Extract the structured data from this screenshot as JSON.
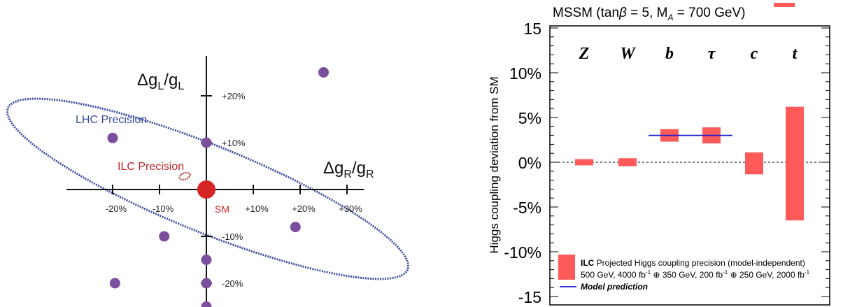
{
  "chart_data": [
    {
      "type": "scatter",
      "xlabel_base": "Δg",
      "xlabel_sub": "R",
      "xlabel_div": "/g",
      "ylabel_base": "Δg",
      "ylabel_sub": "L",
      "ylabel_div": "/g",
      "x_ticks": [
        -20,
        -10,
        10,
        20,
        30
      ],
      "x_tick_labels": [
        "-20%",
        "-10%",
        "+10%",
        "+20%",
        "+30%"
      ],
      "y_ticks": [
        -20,
        -10,
        10,
        20
      ],
      "y_tick_labels": [
        "-20%",
        "-10%",
        "+10%",
        "+20%"
      ],
      "origin_label": "SM",
      "annotations": {
        "lhc": "LHC Precision",
        "ilc": "ILC Precision"
      },
      "points": [
        {
          "x": 25,
          "y": 25
        },
        {
          "x": -20,
          "y": 11
        },
        {
          "x": 0,
          "y": 10
        },
        {
          "x": 19,
          "y": -8
        },
        {
          "x": -9,
          "y": -10
        },
        {
          "x": 0,
          "y": -15
        },
        {
          "x": -19.5,
          "y": -20
        },
        {
          "x": 0,
          "y": -20
        },
        {
          "x": 0,
          "y": -25
        }
      ],
      "colors": {
        "points": "#7b4f9e",
        "sm": "#d42424",
        "lhc": "#3b4a9c",
        "ilc": "#c0282a",
        "axis": "#111111"
      }
    },
    {
      "type": "bar",
      "title_prefix": "MSSM (tan",
      "title_beta": "β",
      "title_mid": " = 5, M",
      "title_sub": "A",
      "title_suffix": " = 700 GeV)",
      "ylabel": "Higgs coupling deviation from SM",
      "ylim": [
        -15,
        15
      ],
      "y_ticks": [
        -15,
        -10,
        -5,
        0,
        5,
        10,
        15
      ],
      "y_tick_labels": [
        "-15",
        "-10%",
        "-5%",
        "0%",
        "5%",
        "10%",
        "15"
      ],
      "categories": [
        "Z",
        "W",
        "b",
        "τ",
        "c",
        "t"
      ],
      "bars": [
        {
          "low": -0.35,
          "high": 0.35
        },
        {
          "low": -0.45,
          "high": 0.45
        },
        {
          "low": 2.3,
          "high": 3.7
        },
        {
          "low": 2.1,
          "high": 3.9
        },
        {
          "low": -1.35,
          "high": 1.1
        },
        {
          "low": -6.5,
          "high": 6.2
        }
      ],
      "model_prediction": [
        {
          "from_category": 2,
          "to_category": 3,
          "value": 3.0
        }
      ],
      "legend": {
        "bold": "ILC",
        "line1": " Projected Higgs coupling precision (model-independent)",
        "line2_parts": [
          "500 GeV, 4000 fb",
          "-1",
          " ⊕ 350 GeV, 200 fb",
          "-1",
          " ⊕ 250 GeV, 2000 fb",
          "-1"
        ],
        "model": "Model prediction"
      },
      "colors": {
        "bar": "#ff5a5a",
        "model_line": "#1c1ccc",
        "axis": "#000000"
      }
    }
  ]
}
